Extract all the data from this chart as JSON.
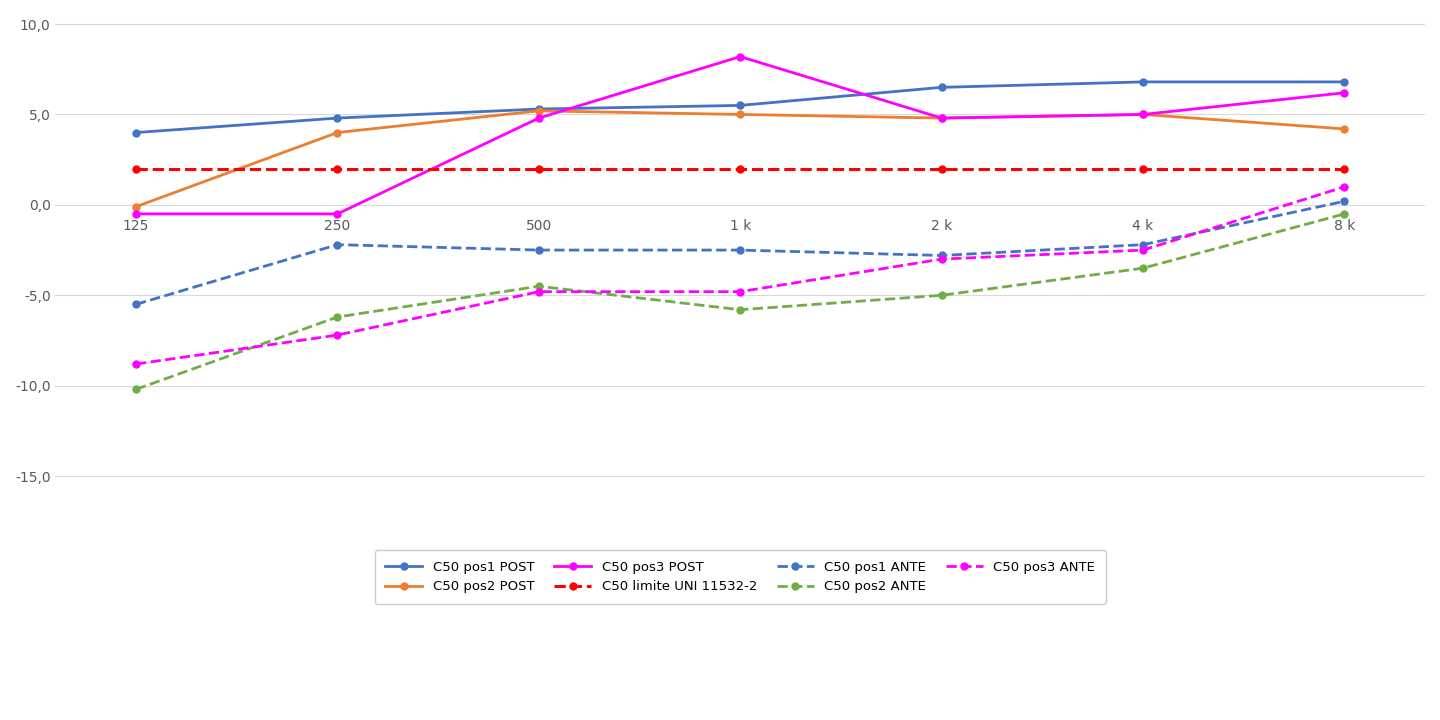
{
  "x_labels": [
    "125",
    "250",
    "500",
    "1 k",
    "2 k",
    "4 k",
    "8 k"
  ],
  "x_values": [
    0,
    1,
    2,
    3,
    4,
    5,
    6
  ],
  "series": {
    "C50 pos1 POST": {
      "values": [
        4.0,
        4.8,
        5.3,
        5.5,
        6.5,
        6.8,
        6.8
      ],
      "color": "#4472C4",
      "linestyle": "solid",
      "marker": "o",
      "linewidth": 2.0,
      "markersize": 5
    },
    "C50 pos2 POST": {
      "values": [
        -0.1,
        4.0,
        5.2,
        5.0,
        4.8,
        5.0,
        4.2
      ],
      "color": "#ED7D31",
      "linestyle": "solid",
      "marker": "o",
      "linewidth": 2.0,
      "markersize": 5
    },
    "C50 pos3 POST": {
      "values": [
        -0.5,
        -0.5,
        4.8,
        8.2,
        4.8,
        5.0,
        6.2
      ],
      "color": "#FF00FF",
      "linestyle": "solid",
      "marker": "o",
      "linewidth": 2.0,
      "markersize": 5
    },
    "C50 limite UNI 11532-2": {
      "values": [
        2.0,
        2.0,
        2.0,
        2.0,
        2.0,
        2.0,
        2.0
      ],
      "color": "#FF0000",
      "linestyle": "dashed",
      "marker": "o",
      "linewidth": 2.2,
      "markersize": 5
    },
    "C50 pos1 ANTE": {
      "values": [
        -5.5,
        -2.2,
        -2.5,
        -2.5,
        -2.8,
        -2.2,
        0.2
      ],
      "color": "#4472C4",
      "linestyle": "dashed",
      "marker": "o",
      "linewidth": 2.0,
      "markersize": 5
    },
    "C50 pos2 ANTE": {
      "values": [
        -10.2,
        -6.2,
        -4.5,
        -5.8,
        -5.0,
        -3.5,
        -0.5
      ],
      "color": "#70AD47",
      "linestyle": "dashed",
      "marker": "o",
      "linewidth": 2.0,
      "markersize": 5
    },
    "C50 pos3 ANTE": {
      "values": [
        -8.8,
        -7.2,
        -4.8,
        -4.8,
        -3.0,
        -2.5,
        1.0
      ],
      "color": "#FF00FF",
      "linestyle": "dashed",
      "marker": "o",
      "linewidth": 2.0,
      "markersize": 5
    }
  },
  "ylim": [
    -16.5,
    10.5
  ],
  "yticks": [
    -15.0,
    -10.0,
    -5.0,
    0.0,
    5.0,
    10.0
  ],
  "ytick_labels": [
    "-15,0",
    "-10,0",
    "-5,0",
    "0,0",
    "5,0",
    "10,0"
  ],
  "background_color": "#ffffff",
  "plot_background": "#ffffff",
  "grid_color": "#d9d9d9",
  "legend_order": [
    "C50 pos1 POST",
    "C50 pos2 POST",
    "C50 pos3 POST",
    "C50 limite UNI 11532-2",
    "C50 pos1 ANTE",
    "C50 pos2 ANTE",
    "C50 pos3 ANTE"
  ],
  "xtick_position_y": -0.8
}
